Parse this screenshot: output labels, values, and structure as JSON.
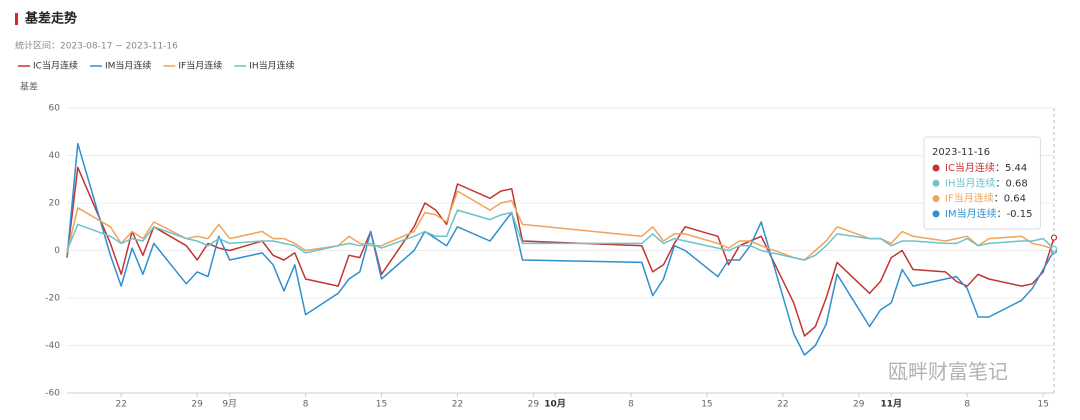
{
  "chart_data": {
    "type": "line",
    "title": "基差走势",
    "subtitle": "统计区间：2023-08-17 ~ 2023-11-16",
    "ylabel": "基差",
    "watermark": "瓯畔财富笔记",
    "x": [
      "2023-08-17",
      "2023-08-18",
      "2023-08-21",
      "2023-08-22",
      "2023-08-23",
      "2023-08-24",
      "2023-08-25",
      "2023-08-28",
      "2023-08-29",
      "2023-08-30",
      "2023-08-31",
      "2023-09-01",
      "2023-09-04",
      "2023-09-05",
      "2023-09-06",
      "2023-09-07",
      "2023-09-08",
      "2023-09-11",
      "2023-09-12",
      "2023-09-13",
      "2023-09-14",
      "2023-09-15",
      "2023-09-18",
      "2023-09-19",
      "2023-09-20",
      "2023-09-21",
      "2023-09-22",
      "2023-09-25",
      "2023-09-26",
      "2023-09-27",
      "2023-09-28",
      "2023-10-09",
      "2023-10-10",
      "2023-10-11",
      "2023-10-12",
      "2023-10-13",
      "2023-10-16",
      "2023-10-17",
      "2023-10-18",
      "2023-10-19",
      "2023-10-20",
      "2023-10-23",
      "2023-10-24",
      "2023-10-25",
      "2023-10-26",
      "2023-10-27",
      "2023-10-30",
      "2023-10-31",
      "2023-11-01",
      "2023-11-02",
      "2023-11-03",
      "2023-11-06",
      "2023-11-07",
      "2023-11-08",
      "2023-11-09",
      "2023-11-10",
      "2023-11-13",
      "2023-11-14",
      "2023-11-15",
      "2023-11-16"
    ],
    "series": [
      {
        "name": "IC当月连续",
        "color": "#c23531",
        "values": [
          -3,
          35,
          3,
          -10,
          8,
          -2,
          10,
          2,
          -4,
          3,
          1,
          0,
          4,
          -2,
          -4,
          -1,
          -12,
          -15,
          -2,
          -3,
          8,
          -10,
          10,
          20,
          17,
          11,
          28,
          22,
          25,
          26,
          4,
          2,
          -9,
          -6,
          3,
          10,
          6,
          -6,
          2,
          4,
          6,
          -22,
          -36,
          -32,
          -20,
          -5,
          -18,
          -13,
          -3,
          0,
          -8,
          -9,
          -13,
          -15,
          -10,
          -12,
          -15,
          -14,
          -9,
          5.44
        ]
      },
      {
        "name": "IM当月连续",
        "color": "#2f8fcf",
        "values": [
          -3,
          45,
          -2,
          -15,
          1,
          -10,
          3,
          -14,
          -9,
          -11,
          6,
          -4,
          -1,
          -6,
          -17,
          -6,
          -27,
          -18,
          -12,
          -9,
          8,
          -12,
          0,
          8,
          5,
          2,
          10,
          4,
          10,
          16,
          -4,
          -5,
          -19,
          -12,
          2,
          0,
          -11,
          -4,
          -4,
          2,
          12,
          -35,
          -44,
          -40,
          -31,
          -10,
          -32,
          -25,
          -22,
          -8,
          -15,
          -12,
          -11,
          -16,
          -28,
          -28,
          -21,
          -16,
          -8,
          -0.15
        ]
      },
      {
        "name": "IF当月连续",
        "color": "#f0a35a",
        "values": [
          -1,
          18,
          10,
          3,
          8,
          5,
          12,
          5,
          6,
          5,
          11,
          5,
          8,
          5,
          5,
          3,
          0,
          2,
          6,
          3,
          2,
          2,
          8,
          16,
          15,
          12,
          25,
          17,
          20,
          21,
          11,
          6,
          10,
          4,
          7,
          7,
          3,
          1,
          4,
          4,
          2,
          -3,
          -4,
          0,
          4,
          10,
          5,
          5,
          3,
          8,
          6,
          4,
          5,
          6,
          2,
          5,
          6,
          3,
          2,
          0.64
        ]
      },
      {
        "name": "IH当月连续",
        "color": "#6cc3c9",
        "values": [
          0,
          11,
          6,
          3,
          5,
          4,
          10,
          5,
          4,
          2,
          5,
          3,
          4,
          4,
          3,
          2,
          -1,
          2,
          3,
          2,
          3,
          1,
          6,
          8,
          6,
          6,
          17,
          13,
          15,
          16,
          3,
          3,
          7,
          3,
          5,
          4,
          1,
          0,
          2,
          2,
          0,
          -3,
          -4,
          -2,
          2,
          7,
          5,
          5,
          2,
          4,
          4,
          3,
          3,
          5,
          2,
          3,
          4,
          4,
          5,
          0.68
        ]
      }
    ],
    "xlim": [
      "2023-08-17",
      "2023-11-16"
    ],
    "xticks": [
      {
        "value": "2023-08-22",
        "label": "22"
      },
      {
        "value": "2023-08-29",
        "label": "29"
      },
      {
        "value": "2023-09-01",
        "label": "9月"
      },
      {
        "value": "2023-09-08",
        "label": "8"
      },
      {
        "value": "2023-09-15",
        "label": "15"
      },
      {
        "value": "2023-09-22",
        "label": "22"
      },
      {
        "value": "2023-09-29",
        "label": "29"
      },
      {
        "value": "2023-10-01",
        "label": "10月"
      },
      {
        "value": "2023-10-08",
        "label": "8"
      },
      {
        "value": "2023-10-15",
        "label": "15"
      },
      {
        "value": "2023-10-22",
        "label": "22"
      },
      {
        "value": "2023-10-29",
        "label": "29"
      },
      {
        "value": "2023-11-01",
        "label": "11月"
      },
      {
        "value": "2023-11-08",
        "label": "8"
      },
      {
        "value": "2023-11-15",
        "label": "15"
      }
    ],
    "ylim": [
      -60,
      60
    ],
    "yticks": [
      -60,
      -40,
      -20,
      0,
      20,
      40,
      60
    ],
    "grid": true,
    "legend": "top-left",
    "tooltip": {
      "index": 59,
      "separator": "：",
      "order": [
        0,
        3,
        2,
        1
      ]
    }
  }
}
